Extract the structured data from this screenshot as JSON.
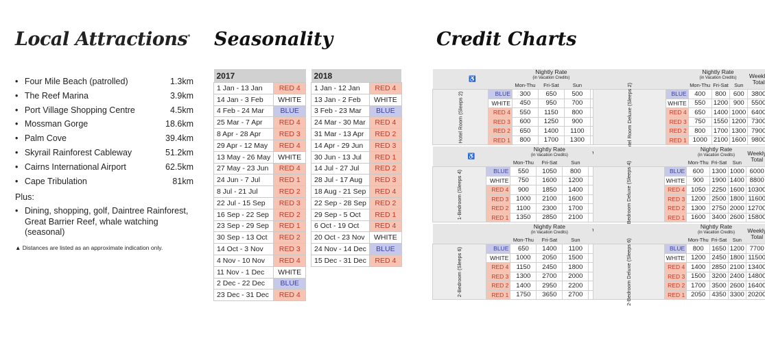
{
  "attractions": {
    "title": "Local Attractions",
    "title_mark": "*",
    "items": [
      {
        "name": "Four Mile Beach (patrolled)",
        "dist": "1.3km"
      },
      {
        "name": "The Reef Marina",
        "dist": "3.9km"
      },
      {
        "name": "Port Village Shopping Centre",
        "dist": "4.5km"
      },
      {
        "name": "Mossman Gorge",
        "dist": "18.6km"
      },
      {
        "name": "Palm Cove",
        "dist": "39.4km"
      },
      {
        "name": "Skyrail Rainforest Cableway",
        "dist": "51.2km"
      },
      {
        "name": "Cairns International Airport",
        "dist": "62.5km"
      },
      {
        "name": "Cape Tribulation",
        "dist": "81km"
      }
    ],
    "plus_label": "Plus:",
    "plus_text": "Dining, shopping, golf, Daintree Rainforest, Great Barrier Reef, whale watching (seasonal)",
    "note": "▲ Distances are listed as an approximate indication only."
  },
  "seasonality": {
    "title": "Seasonality",
    "y2017": "2017",
    "y2018": "2018",
    "rows2017": [
      [
        "1 Jan - 13 Jan",
        "RED 4"
      ],
      [
        "14 Jan - 3 Feb",
        "WHITE"
      ],
      [
        "4 Feb - 24 Mar",
        "BLUE"
      ],
      [
        "25 Mar - 7 Apr",
        "RED 4"
      ],
      [
        "8 Apr - 28 Apr",
        "RED 3"
      ],
      [
        "29 Apr - 12 May",
        "RED 4"
      ],
      [
        "13 May - 26 May",
        "WHITE"
      ],
      [
        "27 May - 23 Jun",
        "RED 4"
      ],
      [
        "24 Jun - 7 Jul",
        "RED 1"
      ],
      [
        "8 Jul - 21 Jul",
        "RED 2"
      ],
      [
        "22 Jul - 15 Sep",
        "RED 3"
      ],
      [
        "16 Sep - 22 Sep",
        "RED 2"
      ],
      [
        "23 Sep - 29 Sep",
        "RED 1"
      ],
      [
        "30 Sep - 13 Oct",
        "RED 2"
      ],
      [
        "14 Oct - 3 Nov",
        "RED 3"
      ],
      [
        "4 Nov - 10 Nov",
        "RED 4"
      ],
      [
        "11 Nov - 1 Dec",
        "WHITE"
      ],
      [
        "2 Dec - 22 Dec",
        "BLUE"
      ],
      [
        "23 Dec - 31 Dec",
        "RED 4"
      ]
    ],
    "rows2018": [
      [
        "1 Jan - 12 Jan",
        "RED 4"
      ],
      [
        "13 Jan - 2 Feb",
        "WHITE"
      ],
      [
        "3 Feb - 23 Mar",
        "BLUE"
      ],
      [
        "24 Mar - 30 Mar",
        "RED 4"
      ],
      [
        "31 Mar - 13 Apr",
        "RED 2"
      ],
      [
        "14 Apr - 29 Jun",
        "RED 3"
      ],
      [
        "30 Jun - 13 Jul",
        "RED 1"
      ],
      [
        "14 Jul - 27 Jul",
        "RED 2"
      ],
      [
        "28 Jul - 17 Aug",
        "RED 3"
      ],
      [
        "18 Aug - 21 Sep",
        "RED 4"
      ],
      [
        "22 Sep - 28 Sep",
        "RED 2"
      ],
      [
        "29 Sep - 5 Oct",
        "RED 1"
      ],
      [
        "6 Oct - 19 Oct",
        "RED 4"
      ],
      [
        "20 Oct - 23 Nov",
        "WHITE"
      ],
      [
        "24 Nov - 14 Dec",
        "BLUE"
      ],
      [
        "15 Dec - 31 Dec",
        "RED 4"
      ]
    ]
  },
  "credit": {
    "title": "Credit Charts",
    "hdr_nightly": "Nightly Rate",
    "hdr_sub": "(in Vacation Credits)",
    "hdr_weekly": "Weekly Total",
    "days": [
      "Mon-Thu",
      "Fri-Sat",
      "Sun"
    ],
    "cats": [
      "BLUE",
      "WHITE",
      "RED 4",
      "RED 3",
      "RED 2",
      "RED 1"
    ],
    "icon": "♿",
    "left": [
      {
        "label": "Hotel Room (Sleeps 2)",
        "rows": [
          [
            300,
            650,
            500,
            3000
          ],
          [
            450,
            950,
            700,
            4400
          ],
          [
            550,
            1150,
            800,
            5300
          ],
          [
            600,
            1250,
            900,
            5800
          ],
          [
            650,
            1400,
            1100,
            6500
          ],
          [
            800,
            1700,
            1300,
            7900
          ]
        ]
      },
      {
        "label": "1-Bedroom (Sleeps 4)",
        "rows": [
          [
            550,
            1050,
            800,
            5100
          ],
          [
            750,
            1600,
            1200,
            7400
          ],
          [
            900,
            1850,
            1400,
            8700
          ],
          [
            1000,
            2100,
            1600,
            9800
          ],
          [
            1100,
            2300,
            1700,
            10700
          ],
          [
            1350,
            2850,
            2100,
            13200
          ]
        ]
      },
      {
        "label": "2-Bedroom (Sleeps 6)",
        "rows": [
          [
            650,
            1400,
            1100,
            6500
          ],
          [
            1000,
            2050,
            1500,
            9600
          ],
          [
            1150,
            2450,
            1800,
            11300
          ],
          [
            1300,
            2700,
            2000,
            12600
          ],
          [
            1400,
            2950,
            2200,
            13700
          ],
          [
            1750,
            3650,
            2700,
            17000
          ]
        ]
      }
    ],
    "right": [
      {
        "label": "Hotel Room Deluxe (Sleeps 2)",
        "rows": [
          [
            400,
            800,
            600,
            3800
          ],
          [
            550,
            1200,
            900,
            5500
          ],
          [
            650,
            1400,
            1000,
            6400
          ],
          [
            750,
            1550,
            1200,
            7300
          ],
          [
            800,
            1700,
            1300,
            7900
          ],
          [
            1000,
            2100,
            1600,
            9800
          ]
        ]
      },
      {
        "label": "1-Bedroom Deluxe (Sleeps 4)",
        "rows": [
          [
            600,
            1300,
            1000,
            6000
          ],
          [
            900,
            1900,
            1400,
            8800
          ],
          [
            1050,
            2250,
            1600,
            10300
          ],
          [
            1200,
            2500,
            1800,
            11600
          ],
          [
            1300,
            2750,
            2000,
            12700
          ],
          [
            1600,
            3400,
            2600,
            15800
          ]
        ]
      },
      {
        "label": "2-Bedroom Deluxe (Sleeps 6)",
        "rows": [
          [
            800,
            1650,
            1200,
            7700
          ],
          [
            1200,
            2450,
            1800,
            11500
          ],
          [
            1400,
            2850,
            2100,
            13400
          ],
          [
            1500,
            3200,
            2400,
            14800
          ],
          [
            1700,
            3500,
            2600,
            16400
          ],
          [
            2050,
            4350,
            3300,
            20200
          ]
        ]
      }
    ]
  }
}
